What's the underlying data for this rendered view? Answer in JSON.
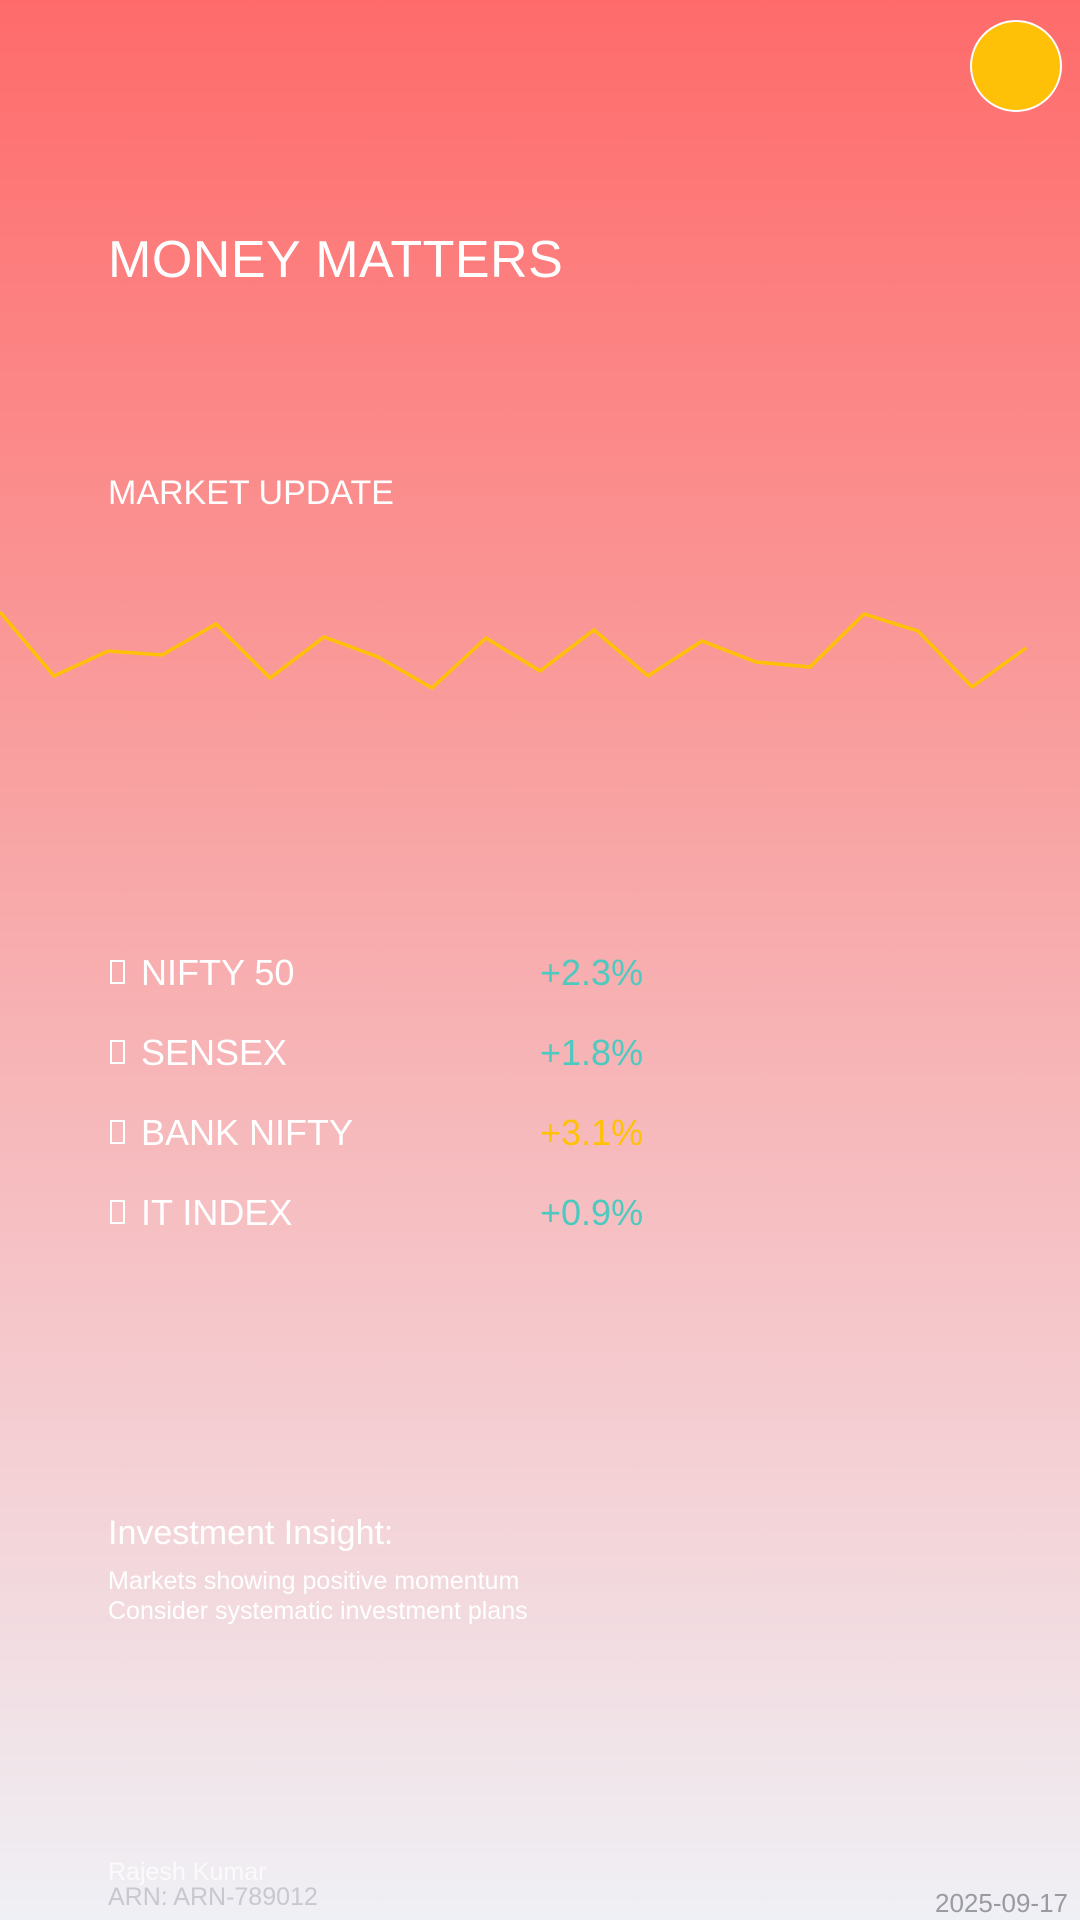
{
  "header": {
    "title": "MONEY MATTERS",
    "subtitle": "MARKET UPDATE",
    "sun_color": "#ffc107"
  },
  "trend_line": {
    "color": "#ffc107",
    "values": [
      612,
      676,
      651,
      655,
      624,
      678,
      637,
      657,
      688,
      638,
      671,
      630,
      676,
      641,
      662,
      667,
      614,
      631,
      687,
      648
    ]
  },
  "indices": [
    {
      "icon": "box-icon",
      "name": "NIFTY 50",
      "change": "+2.3%",
      "color": "#4ec9c0"
    },
    {
      "icon": "box-icon",
      "name": "SENSEX",
      "change": "+1.8%",
      "color": "#4ec9c0"
    },
    {
      "icon": "box-icon",
      "name": "BANK NIFTY",
      "change": "+3.1%",
      "color": "#ffc107"
    },
    {
      "icon": "box-icon",
      "name": "IT INDEX",
      "change": "+0.9%",
      "color": "#4ec9c0"
    }
  ],
  "insight": {
    "title": "Investment Insight:",
    "lines": [
      "Markets showing positive momentum",
      "Consider systematic investment plans"
    ]
  },
  "footer": {
    "name": "Rajesh Kumar",
    "arn": "ARN: ARN-789012",
    "date": "2025-09-17"
  }
}
